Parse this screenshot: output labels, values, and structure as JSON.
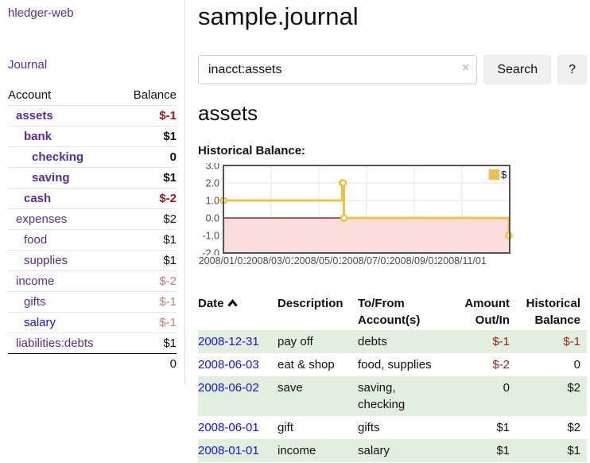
{
  "app_title": "hledger-web",
  "sidebar": {
    "nav_journal": "Journal",
    "accounts": {
      "header_account": "Account",
      "header_balance": "Balance",
      "rows": [
        {
          "account": "assets",
          "balance": "$-1",
          "level": 1,
          "current": true,
          "balance_class": "neg-strong",
          "link_class": ""
        },
        {
          "account": "bank",
          "balance": "$1",
          "level": 2,
          "current": true,
          "balance_class": "",
          "link_class": ""
        },
        {
          "account": "checking",
          "balance": "0",
          "level": 3,
          "current": true,
          "balance_class": "",
          "link_class": ""
        },
        {
          "account": "saving",
          "balance": "$1",
          "level": 3,
          "current": true,
          "balance_class": "",
          "link_class": ""
        },
        {
          "account": "cash",
          "balance": "$-2",
          "level": 2,
          "current": true,
          "balance_class": "neg-strong",
          "link_class": ""
        },
        {
          "account": "expenses",
          "balance": "$2",
          "level": 1,
          "current": false,
          "balance_class": "",
          "link_class": ""
        },
        {
          "account": "food",
          "balance": "$1",
          "level": 2,
          "current": false,
          "balance_class": "",
          "link_class": ""
        },
        {
          "account": "supplies",
          "balance": "$1",
          "level": 2,
          "current": false,
          "balance_class": "",
          "link_class": ""
        },
        {
          "account": "income",
          "balance": "$-2",
          "level": 1,
          "current": false,
          "balance_class": "neg-soft",
          "link_class": ""
        },
        {
          "account": "gifts",
          "balance": "$-1",
          "level": 2,
          "current": false,
          "balance_class": "neg-soft",
          "link_class": ""
        },
        {
          "account": "salary",
          "balance": "$-1",
          "level": 2,
          "current": false,
          "balance_class": "neg-soft",
          "link_class": "blue"
        },
        {
          "account": "liabilities:debts",
          "balance": "$1",
          "level": 1,
          "current": false,
          "balance_class": "",
          "link_class": ""
        }
      ],
      "total": "0"
    }
  },
  "main": {
    "title": "sample.journal",
    "search": {
      "value": "inacct:assets",
      "clear_icon": "×",
      "button_label": "Search",
      "help_label": "?"
    },
    "account_heading": "assets",
    "chart_heading": "Historical Balance:",
    "transactions": {
      "header_date": "Date",
      "header_description": "Description",
      "header_account": "To/From Account(s)",
      "header_amount": "Amount Out/In",
      "header_balance": "Historical Balance",
      "rows": [
        {
          "date": "2008-12-31",
          "description": "pay off",
          "accounts": "debts",
          "amount": "$-1",
          "balance": "$-1",
          "amount_neg": true,
          "balance_neg": true
        },
        {
          "date": "2008-06-03",
          "description": "eat & shop",
          "accounts": "food, supplies",
          "amount": "$-2",
          "balance": "0",
          "amount_neg": true,
          "balance_neg": false
        },
        {
          "date": "2008-06-02",
          "description": "save",
          "accounts": "saving, checking",
          "amount": "0",
          "balance": "$2",
          "amount_neg": false,
          "balance_neg": false
        },
        {
          "date": "2008-06-01",
          "description": "gift",
          "accounts": "gifts",
          "amount": "$1",
          "balance": "$2",
          "amount_neg": false,
          "balance_neg": false
        },
        {
          "date": "2008-01-01",
          "description": "income",
          "accounts": "salary",
          "amount": "$1",
          "balance": "$1",
          "amount_neg": false,
          "balance_neg": false
        }
      ]
    }
  },
  "colors": {
    "accent_purple": "#5b2d90",
    "link_blue": "#1414e0",
    "negative_strong": "#9e1b1b",
    "negative_soft": "#c47e7e",
    "row_green": "#e2efde",
    "series_yellow": "#EDC240"
  },
  "chart_data": {
    "type": "line",
    "step": true,
    "title": "Historical Balance:",
    "series": [
      {
        "name": "$",
        "color": "#EDC240",
        "x": [
          "2008-01-01",
          "2008-06-01",
          "2008-06-02",
          "2008-06-03",
          "2008-12-31"
        ],
        "values": [
          1,
          2,
          2,
          0,
          -1
        ]
      }
    ],
    "xlim": [
      "2008-01-01",
      "2009-01-01"
    ],
    "ylim": [
      -2,
      3
    ],
    "y_ticks": [
      3,
      2,
      1,
      0,
      -1,
      -2
    ],
    "x_ticks": [
      "2008/01/01",
      "2008/03/01",
      "2008/05/01",
      "2008/07/01",
      "2008/09/01",
      "2008/11/01"
    ],
    "legend": {
      "label": "$",
      "position": "top-right"
    },
    "grid": true,
    "negative_region_fill": "#fbdcdc",
    "zero_line_color": "#8b0000",
    "border_color": "#545454"
  }
}
